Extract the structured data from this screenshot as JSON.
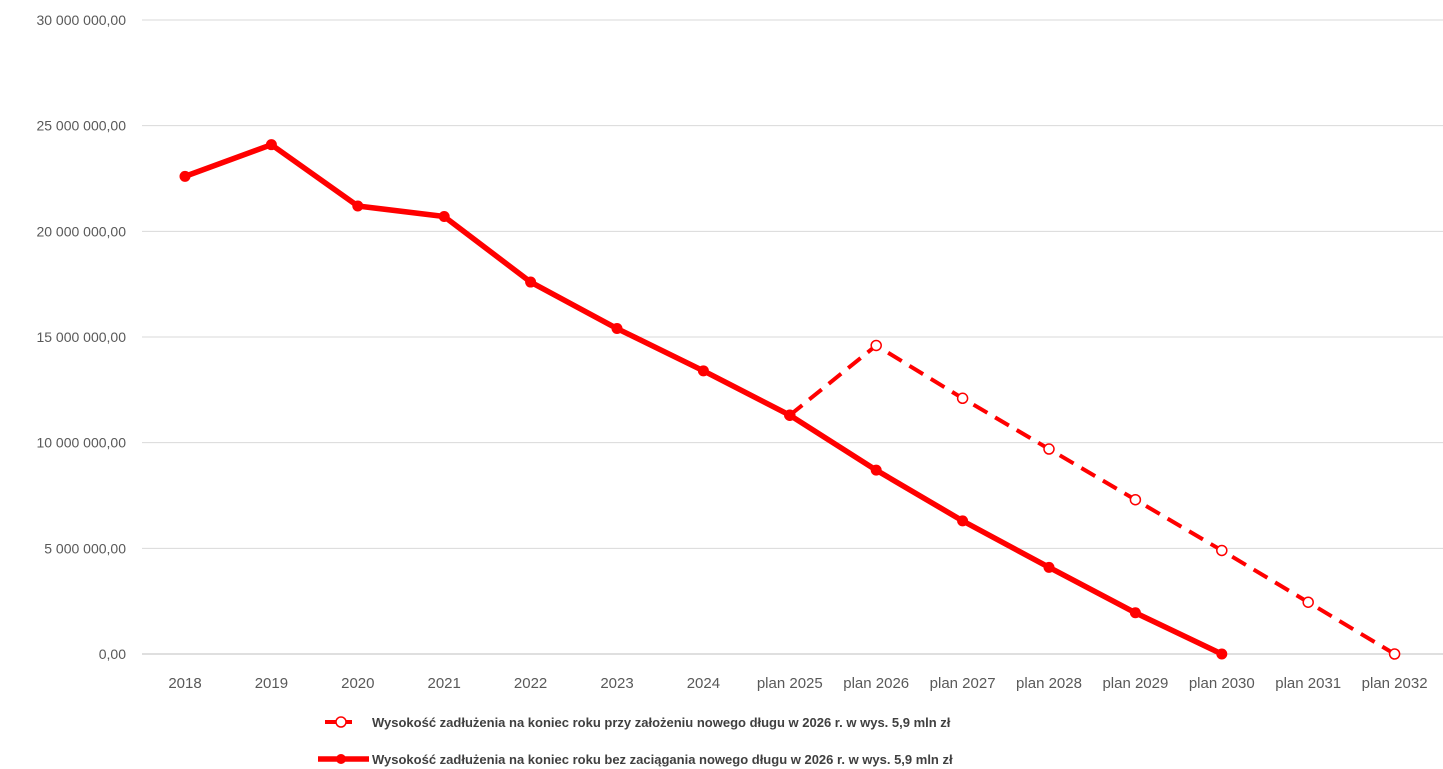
{
  "chart_data": {
    "type": "line",
    "categories": [
      "2018",
      "2019",
      "2020",
      "2021",
      "2022",
      "2023",
      "2024",
      "plan 2025",
      "plan 2026",
      "plan 2027",
      "plan 2028",
      "plan 2029",
      "plan 2030",
      "plan 2031",
      "plan 2032"
    ],
    "yticks": [
      "0,00",
      "5 000 000,00",
      "10 000 000,00",
      "15 000 000,00",
      "20 000 000,00",
      "25 000 000,00",
      "30 000 000,00"
    ],
    "ylim": [
      0,
      30000000
    ],
    "grid": true,
    "legend_position": "bottom",
    "color": "#ff0000",
    "series": [
      {
        "name": "Wysokość zadłużenia na koniec roku przy założeniu nowego długu w 2026 r. w wys. 5,9 mln zł",
        "style": "dashed",
        "marker": "hollow-circle",
        "values": [
          null,
          null,
          null,
          null,
          null,
          null,
          null,
          11300000,
          14600000,
          12100000,
          9700000,
          7300000,
          4900000,
          2450000,
          0
        ]
      },
      {
        "name": "Wysokość zadłużenia na koniec roku bez zaciągania nowego długu w  2026 r. w wys. 5,9 mln zł",
        "style": "solid",
        "marker": "filled-circle",
        "values": [
          22600000,
          24100000,
          21200000,
          20700000,
          17600000,
          15400000,
          13400000,
          11300000,
          8700000,
          6300000,
          4100000,
          1950000,
          0,
          null,
          null
        ]
      }
    ]
  }
}
